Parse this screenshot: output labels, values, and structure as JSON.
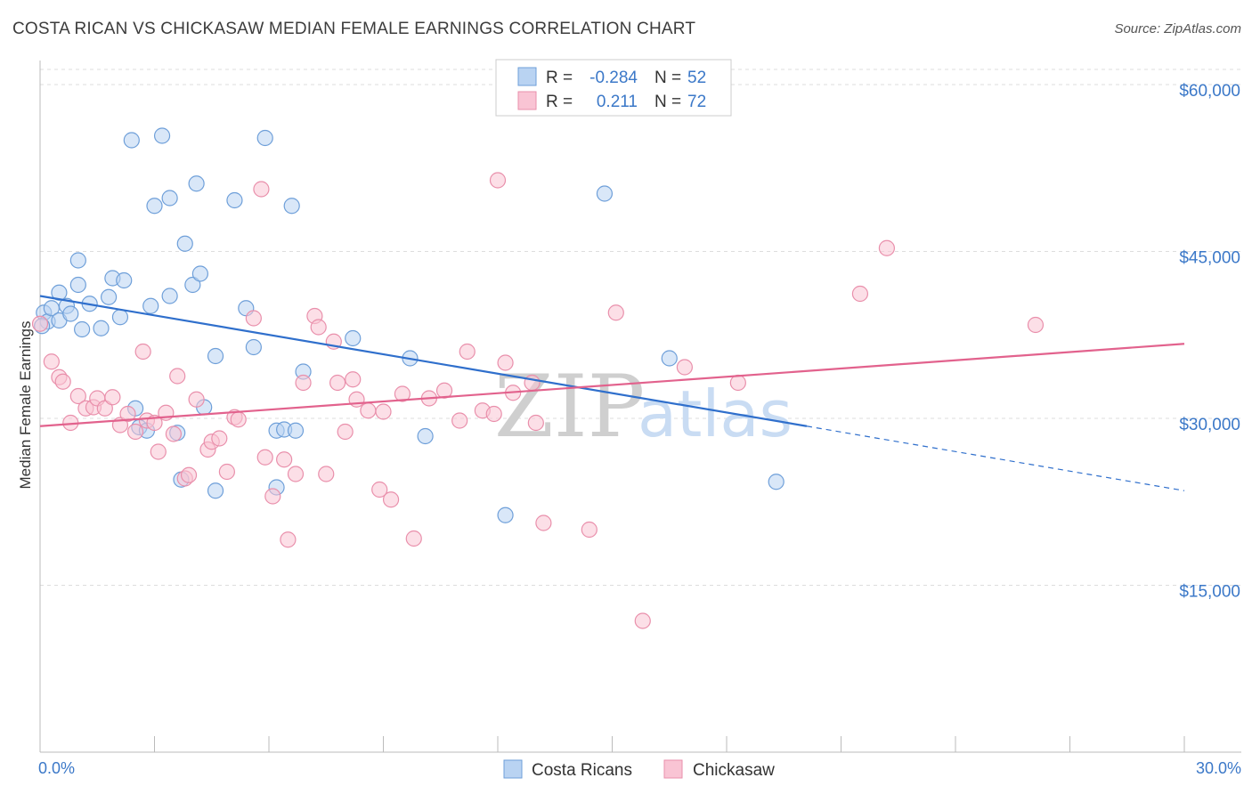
{
  "title": "COSTA RICAN VS CHICKASAW MEDIAN FEMALE EARNINGS CORRELATION CHART",
  "source": "Source: ZipAtlas.com",
  "colors": {
    "blue_fill": "#b9d3f2",
    "blue_stroke": "#6e9fd9",
    "blue_line": "#2f6fcc",
    "pink_fill": "#f9c4d4",
    "pink_stroke": "#e98fab",
    "pink_line": "#e2628d",
    "axis_text": "#3b78c8",
    "grid": "#dddddd"
  },
  "legend": {
    "rows": [
      {
        "r_label": "R =",
        "r_value": "-0.284",
        "n_label": "N =",
        "n_value": "52",
        "series": "blue"
      },
      {
        "r_label": "R =",
        "r_value": "0.211",
        "n_label": "N =",
        "n_value": "72",
        "series": "pink"
      }
    ]
  },
  "watermark": {
    "zip": "ZIP",
    "atlas": "atlas"
  },
  "chart_data": {
    "type": "scatter",
    "ylabel": "Median Female Earnings",
    "xlim": [
      0,
      30
    ],
    "ylim": [
      0,
      62000
    ],
    "x_tick_labels": [
      {
        "value": 0,
        "label": "0.0%"
      },
      {
        "value": 30,
        "label": "30.0%"
      }
    ],
    "y_ticks": [
      {
        "value": 15000,
        "label": "$15,000"
      },
      {
        "value": 30000,
        "label": "$30,000"
      },
      {
        "value": 45000,
        "label": "$45,000"
      },
      {
        "value": 60000,
        "label": "$60,000"
      }
    ],
    "grid": true,
    "legend_position": "top-center",
    "series": [
      {
        "name": "Costa Ricans",
        "color": "#6e9fd9",
        "points": [
          [
            0.1,
            39500
          ],
          [
            0.2,
            38700
          ],
          [
            0.3,
            39900
          ],
          [
            0.5,
            41300
          ],
          [
            0.5,
            38800
          ],
          [
            0.7,
            40100
          ],
          [
            0.8,
            39400
          ],
          [
            1.0,
            44200
          ],
          [
            1.0,
            42000
          ],
          [
            1.1,
            38000
          ],
          [
            1.3,
            40300
          ],
          [
            1.6,
            38100
          ],
          [
            1.8,
            40900
          ],
          [
            1.9,
            42600
          ],
          [
            2.1,
            39100
          ],
          [
            2.2,
            42400
          ],
          [
            2.4,
            55000
          ],
          [
            2.5,
            30900
          ],
          [
            2.6,
            29200
          ],
          [
            2.8,
            28900
          ],
          [
            2.9,
            40100
          ],
          [
            3.0,
            49100
          ],
          [
            3.2,
            55400
          ],
          [
            3.4,
            41000
          ],
          [
            3.4,
            49800
          ],
          [
            3.6,
            28700
          ],
          [
            3.7,
            24500
          ],
          [
            3.8,
            45700
          ],
          [
            4.0,
            42000
          ],
          [
            4.1,
            51100
          ],
          [
            4.2,
            43000
          ],
          [
            4.3,
            31000
          ],
          [
            4.6,
            23500
          ],
          [
            4.6,
            35600
          ],
          [
            5.1,
            49600
          ],
          [
            5.4,
            39900
          ],
          [
            5.6,
            36400
          ],
          [
            5.9,
            55200
          ],
          [
            6.2,
            23800
          ],
          [
            6.2,
            28900
          ],
          [
            6.4,
            29000
          ],
          [
            6.6,
            49100
          ],
          [
            6.7,
            28900
          ],
          [
            6.9,
            34200
          ],
          [
            8.2,
            37200
          ],
          [
            9.7,
            35400
          ],
          [
            10.1,
            28400
          ],
          [
            12.2,
            21300
          ],
          [
            14.8,
            50200
          ],
          [
            16.5,
            35400
          ],
          [
            19.3,
            24300
          ],
          [
            0.05,
            38300
          ]
        ]
      },
      {
        "name": "Chickasaw",
        "color": "#e98fab",
        "points": [
          [
            0.0,
            38500
          ],
          [
            0.3,
            35100
          ],
          [
            0.5,
            33700
          ],
          [
            0.6,
            33300
          ],
          [
            0.8,
            29600
          ],
          [
            1.0,
            32000
          ],
          [
            1.2,
            30900
          ],
          [
            1.4,
            31000
          ],
          [
            1.5,
            31800
          ],
          [
            1.7,
            30900
          ],
          [
            1.9,
            31900
          ],
          [
            2.1,
            29400
          ],
          [
            2.3,
            30400
          ],
          [
            2.5,
            28800
          ],
          [
            2.7,
            36000
          ],
          [
            2.8,
            29800
          ],
          [
            3.0,
            29600
          ],
          [
            3.1,
            27000
          ],
          [
            3.3,
            30500
          ],
          [
            3.5,
            28600
          ],
          [
            3.6,
            33800
          ],
          [
            3.8,
            24600
          ],
          [
            3.9,
            24900
          ],
          [
            4.1,
            31700
          ],
          [
            4.4,
            27200
          ],
          [
            4.5,
            27900
          ],
          [
            4.7,
            28200
          ],
          [
            4.9,
            25200
          ],
          [
            5.1,
            30100
          ],
          [
            5.2,
            29900
          ],
          [
            5.6,
            39000
          ],
          [
            5.8,
            50600
          ],
          [
            5.9,
            26500
          ],
          [
            6.1,
            23000
          ],
          [
            6.4,
            26300
          ],
          [
            6.5,
            19100
          ],
          [
            6.7,
            25000
          ],
          [
            6.9,
            33200
          ],
          [
            7.2,
            39200
          ],
          [
            7.3,
            38200
          ],
          [
            7.5,
            25000
          ],
          [
            7.7,
            36900
          ],
          [
            7.8,
            33200
          ],
          [
            8.0,
            28800
          ],
          [
            8.2,
            33500
          ],
          [
            8.3,
            31700
          ],
          [
            8.6,
            30700
          ],
          [
            8.9,
            23600
          ],
          [
            9.0,
            30600
          ],
          [
            9.2,
            22700
          ],
          [
            9.5,
            32200
          ],
          [
            9.8,
            19200
          ],
          [
            10.2,
            31800
          ],
          [
            10.6,
            32500
          ],
          [
            11.0,
            29800
          ],
          [
            11.2,
            36000
          ],
          [
            11.6,
            30700
          ],
          [
            11.9,
            30400
          ],
          [
            12.0,
            51400
          ],
          [
            12.2,
            35000
          ],
          [
            12.4,
            32300
          ],
          [
            12.9,
            33200
          ],
          [
            13.0,
            29600
          ],
          [
            13.2,
            20600
          ],
          [
            14.4,
            20000
          ],
          [
            15.1,
            39500
          ],
          [
            15.8,
            11800
          ],
          [
            16.9,
            34600
          ],
          [
            18.3,
            33200
          ],
          [
            21.5,
            41200
          ],
          [
            22.2,
            45300
          ],
          [
            26.1,
            38400
          ]
        ]
      }
    ],
    "trend_lines": [
      {
        "series": "Costa Ricans",
        "from": [
          0,
          41000
        ],
        "to": [
          20.1,
          29300
        ],
        "dashed_to": [
          30,
          23500
        ]
      },
      {
        "series": "Chickasaw",
        "from": [
          0,
          29300
        ],
        "to": [
          30,
          36700
        ]
      }
    ]
  }
}
